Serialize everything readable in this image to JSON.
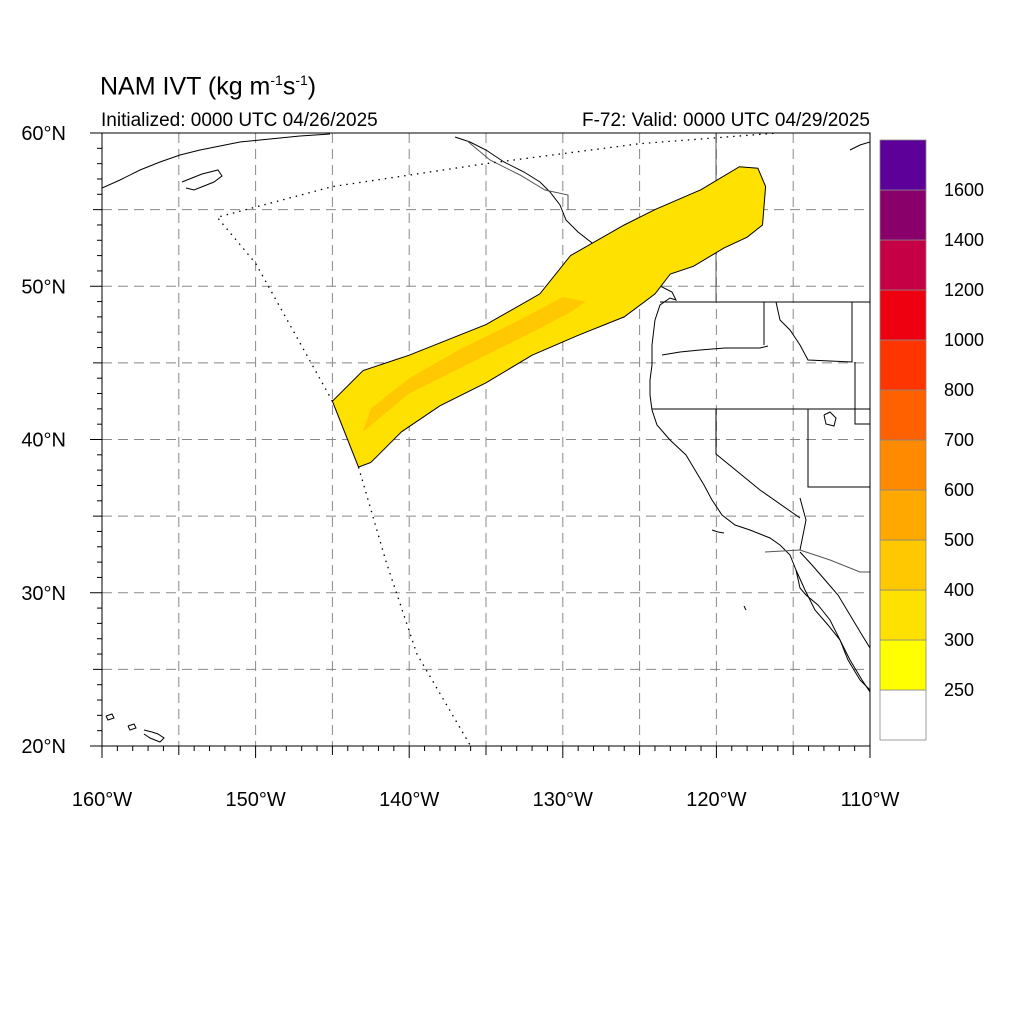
{
  "title": {
    "main": "NAM IVT (kg m",
    "sup1": "-1",
    "mid": "s",
    "sup2": "-1",
    "end": ")"
  },
  "initialized": "Initialized: 0000 UTC 04/26/2025",
  "valid": "F-72: Valid: 0000 UTC 04/29/2025",
  "chart_data": {
    "type": "map",
    "variable": "Integrated water vapor transport",
    "lon_range": [
      -160,
      -110
    ],
    "lat_range": [
      20,
      60
    ],
    "gridlines": true,
    "x_ticks": [
      {
        "lon": -160,
        "label": "160°W"
      },
      {
        "lon": -150,
        "label": "150°W"
      },
      {
        "lon": -140,
        "label": "140°W"
      },
      {
        "lon": -130,
        "label": "130°W"
      },
      {
        "lon": -120,
        "label": "120°W"
      },
      {
        "lon": -110,
        "label": "110°W"
      }
    ],
    "y_ticks": [
      {
        "lat": 20,
        "label": "20°N"
      },
      {
        "lat": 30,
        "label": "30°N"
      },
      {
        "lat": 40,
        "label": "40°N"
      },
      {
        "lat": 50,
        "label": "50°N"
      },
      {
        "lat": 60,
        "label": "60°N"
      }
    ],
    "colorbar": {
      "levels": [
        "250",
        "300",
        "400",
        "500",
        "600",
        "700",
        "800",
        "1000",
        "1200",
        "1400",
        "1600"
      ],
      "colors": [
        "#ffffff",
        "#ffff00",
        "#ffe100",
        "#ffc800",
        "#ffa800",
        "#ff8a00",
        "#ff6000",
        "#ff3500",
        "#ee0011",
        "#c60044",
        "#8a006a",
        "#5c0099"
      ]
    },
    "plume": {
      "outline": [
        [
          -145,
          42.5
        ],
        [
          -143,
          44.5
        ],
        [
          -140,
          45.5
        ],
        [
          -135,
          47.5
        ],
        [
          -131.5,
          49.5
        ],
        [
          -129.5,
          52
        ],
        [
          -126,
          54
        ],
        [
          -124,
          55
        ],
        [
          -121,
          56.3
        ],
        [
          -118.5,
          57.8
        ],
        [
          -117.3,
          57.7
        ],
        [
          -116.8,
          56.5
        ],
        [
          -117,
          54
        ],
        [
          -118,
          53.2
        ],
        [
          -119.5,
          52.5
        ],
        [
          -121.5,
          51.3
        ],
        [
          -123,
          50.8
        ],
        [
          -124,
          49.5
        ],
        [
          -126,
          48
        ],
        [
          -129,
          46.8
        ],
        [
          -132,
          45.5
        ],
        [
          -135,
          43.7
        ],
        [
          -138,
          42.2
        ],
        [
          -140.5,
          40.5
        ],
        [
          -142.5,
          38.5
        ],
        [
          -143.3,
          38.2
        ]
      ],
      "core": [
        [
          -143,
          40.5
        ],
        [
          -140,
          43
        ],
        [
          -136,
          45
        ],
        [
          -132,
          47
        ],
        [
          -129.5,
          48.3
        ],
        [
          -128.5,
          49
        ],
        [
          -130,
          49.3
        ],
        [
          -133,
          47.7
        ],
        [
          -136.5,
          46
        ],
        [
          -140,
          44
        ],
        [
          -142.5,
          42
        ]
      ]
    },
    "track_line": [
      [
        -145,
        42.5
      ],
      [
        -147.5,
        47
      ],
      [
        -150,
        51.5
      ],
      [
        -152.5,
        54.5
      ],
      [
        -145,
        56.5
      ],
      [
        -135,
        58
      ],
      [
        -125,
        59.3
      ],
      [
        -116,
        60
      ]
    ],
    "track_line_south": [
      [
        -143.3,
        38.2
      ],
      [
        -141.5,
        32
      ],
      [
        -139.5,
        26
      ],
      [
        -136,
        20
      ]
    ]
  }
}
